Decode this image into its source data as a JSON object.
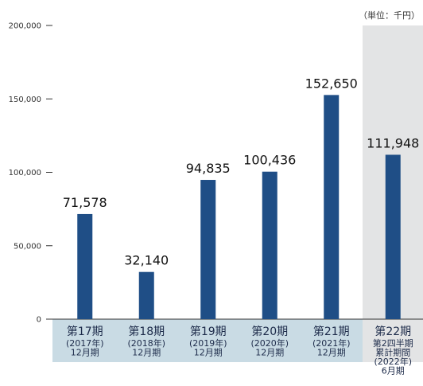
{
  "chart_data": {
    "type": "bar",
    "unit_label": "（単位：千円）",
    "title": "",
    "xlabel": "",
    "ylabel": "",
    "ylim": [
      0,
      200000
    ],
    "yticks": [
      "0",
      "50,000",
      "100,000",
      "150,000",
      "200,000"
    ],
    "ytick_values": [
      0,
      50000,
      100000,
      150000,
      200000
    ],
    "categories": [
      {
        "main": "第17期",
        "sub": [
          "(2017年)",
          "12月期"
        ]
      },
      {
        "main": "第18期",
        "sub": [
          "(2018年)",
          "12月期"
        ]
      },
      {
        "main": "第19期",
        "sub": [
          "(2019年)",
          "12月期"
        ]
      },
      {
        "main": "第20期",
        "sub": [
          "(2020年)",
          "12月期"
        ]
      },
      {
        "main": "第21期",
        "sub": [
          "(2021年)",
          "12月期"
        ]
      },
      {
        "main": "第22期",
        "sub": [
          "第2四半期",
          "累計期間",
          "(2022年)",
          "6月期"
        ]
      }
    ],
    "values": [
      71578,
      32140,
      94835,
      100436,
      152650,
      111948
    ],
    "value_labels": [
      "71,578",
      "32,140",
      "94,835",
      "100,436",
      "152,650",
      "111,948"
    ],
    "grid": false,
    "colors": {
      "bar": "#1f4e86",
      "category_band": "#c9dbe4",
      "highlight_column": "#e3e4e5",
      "axis": "#333333"
    }
  }
}
